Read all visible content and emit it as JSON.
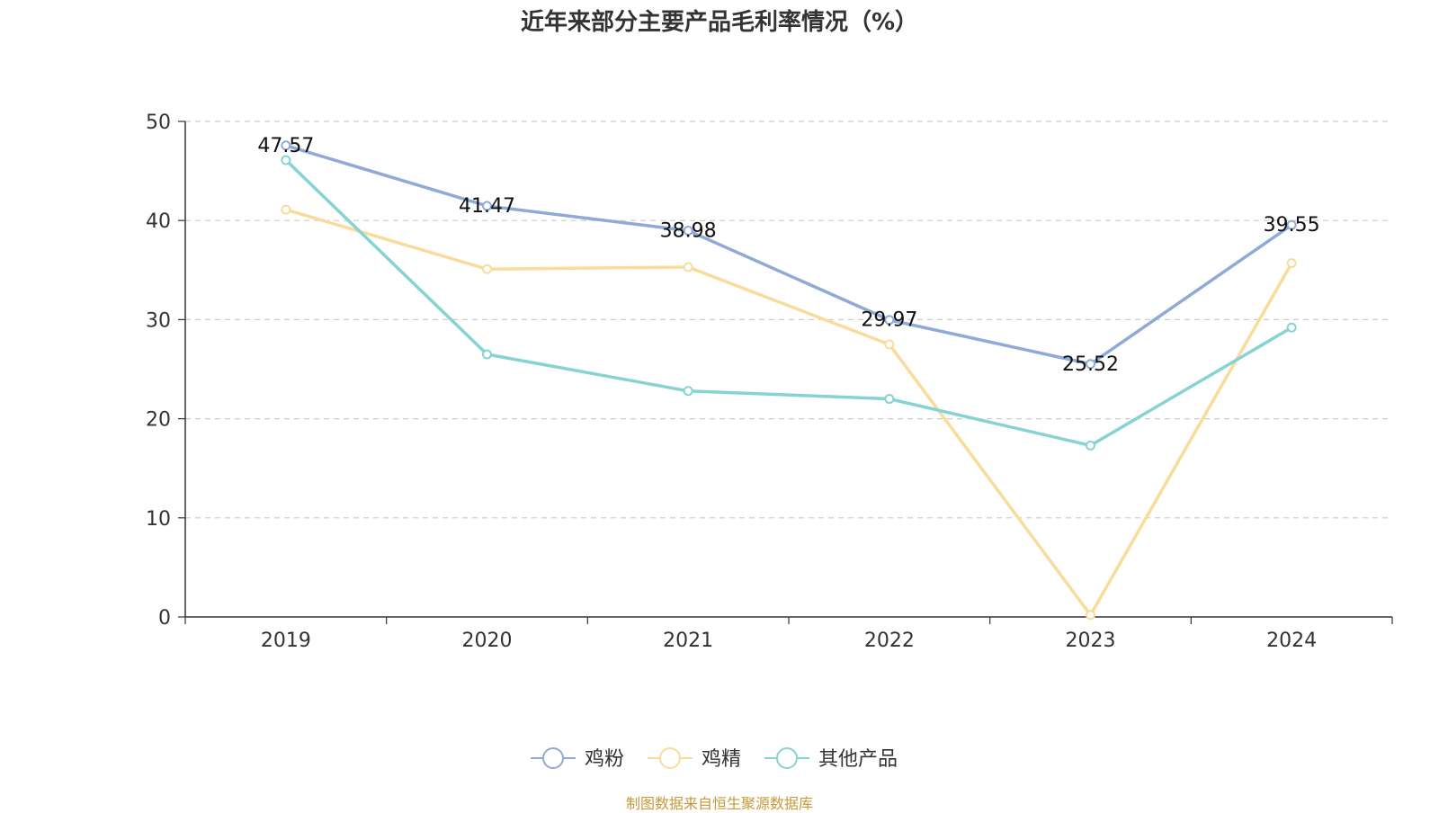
{
  "chart_data": {
    "type": "line",
    "title": "近年来部分主要产品毛利率情况（%）",
    "categories": [
      "2019",
      "2020",
      "2021",
      "2022",
      "2023",
      "2024"
    ],
    "series": [
      {
        "name": "鸡粉",
        "color": "#8faad6",
        "values": [
          47.57,
          41.47,
          38.98,
          29.97,
          25.52,
          39.55
        ],
        "show_labels": true
      },
      {
        "name": "鸡精",
        "color": "#f9dc9b",
        "values": [
          41.1,
          35.1,
          35.3,
          27.5,
          0.2,
          35.7
        ],
        "show_labels": false
      },
      {
        "name": "其他产品",
        "color": "#86d3d3",
        "values": [
          46.1,
          26.5,
          22.8,
          22.0,
          17.3,
          29.2
        ],
        "show_labels": false
      }
    ],
    "ylim": [
      0,
      50
    ],
    "yticks": [
      0,
      10,
      20,
      30,
      40,
      50
    ],
    "xlabel": "",
    "ylabel": "",
    "grid": true,
    "legend": "bottom-center"
  },
  "source_note": "制图数据来自恒生聚源数据库"
}
